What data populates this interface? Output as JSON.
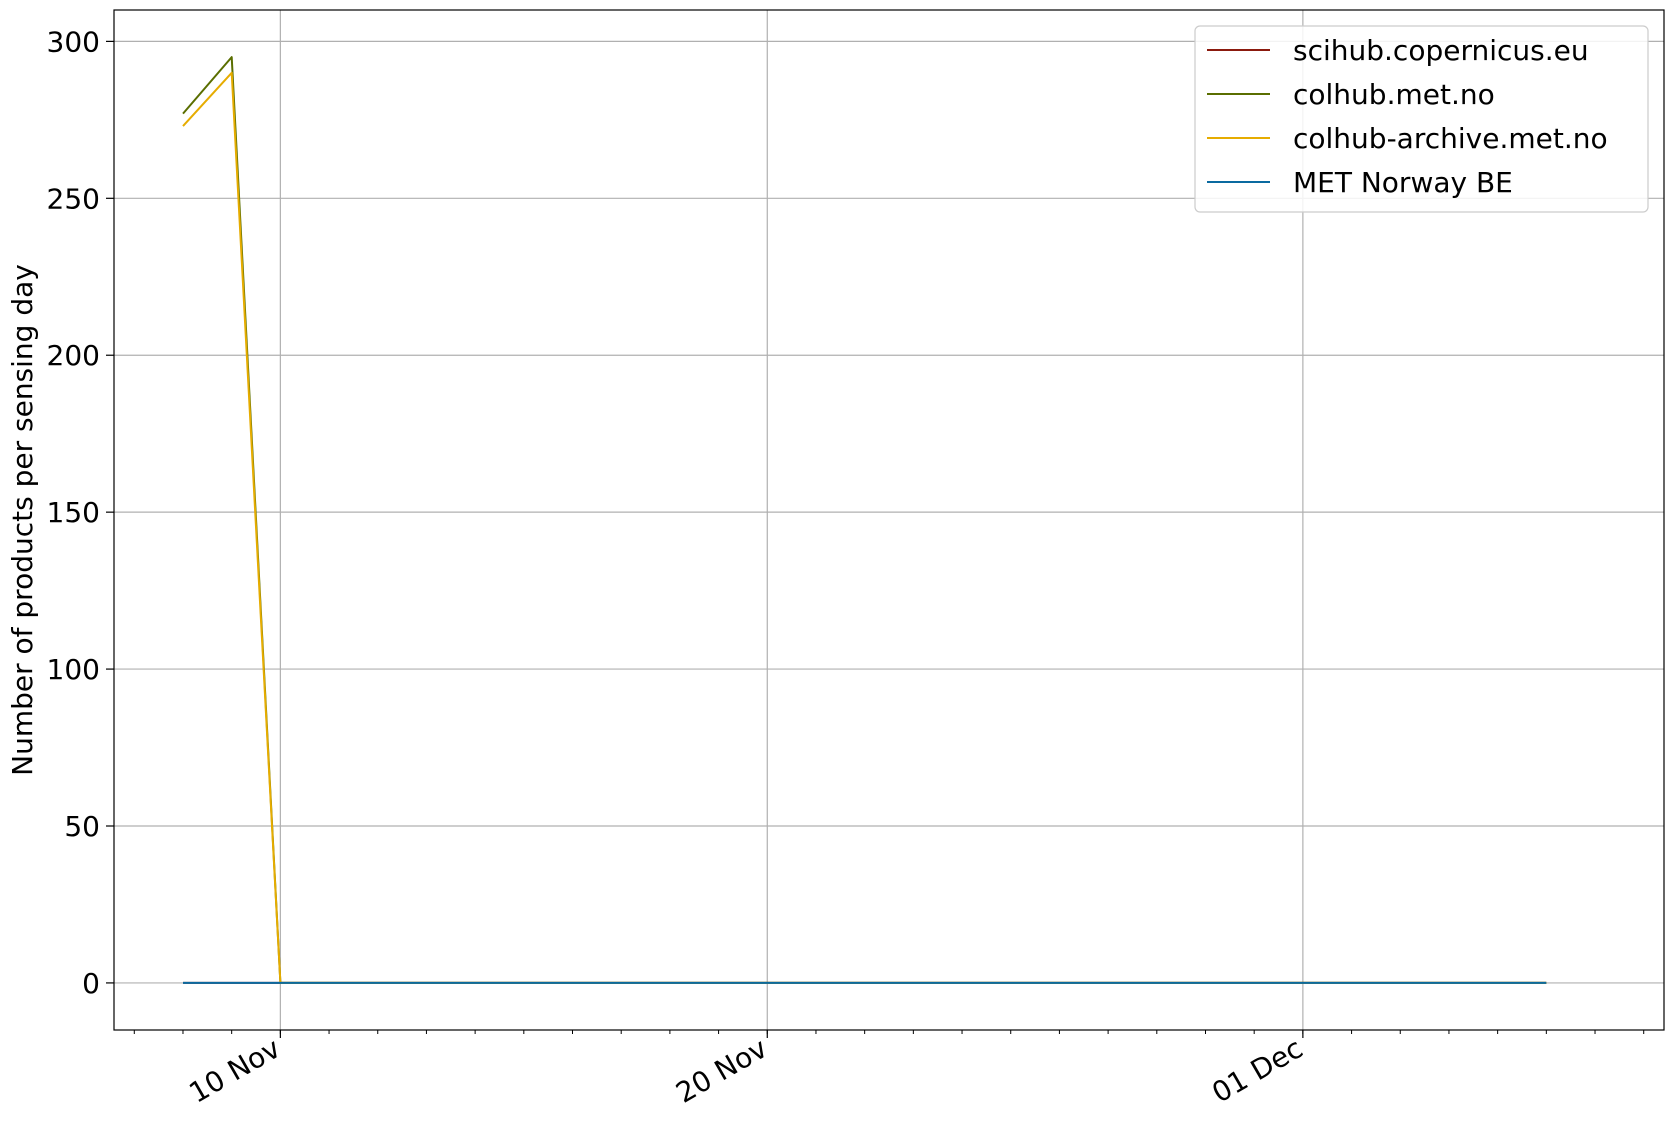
{
  "chart_data": {
    "type": "line",
    "title": "",
    "xlabel": "",
    "ylabel": "Number of products per sensing day",
    "xlim": [
      "2022-11-06T14:00",
      "2022-12-08T10:00"
    ],
    "ylim": [
      -15,
      310
    ],
    "yticks": [
      0,
      50,
      100,
      150,
      200,
      250,
      300
    ],
    "xticks": [
      {
        "date": "2022-11-10",
        "label": "10 Nov"
      },
      {
        "date": "2022-11-20",
        "label": "20 Nov"
      },
      {
        "date": "2022-12-01",
        "label": "01 Dec"
      }
    ],
    "grid": true,
    "legend_position": "top-right",
    "series": [
      {
        "name": "scihub.copernicus.eu",
        "color": "#8b1a0e",
        "points": [
          [
            "2022-11-08",
            0
          ],
          [
            "2022-11-09",
            0
          ],
          [
            "2022-11-10",
            0
          ],
          [
            "2022-12-06",
            0
          ]
        ]
      },
      {
        "name": "colhub.met.no",
        "color": "#5a6e00",
        "points": [
          [
            "2022-11-08",
            277
          ],
          [
            "2022-11-09",
            295
          ],
          [
            "2022-11-10",
            0
          ],
          [
            "2022-12-06",
            0
          ]
        ]
      },
      {
        "name": "colhub-archive.met.no",
        "color": "#e6ac00",
        "points": [
          [
            "2022-11-08",
            273
          ],
          [
            "2022-11-09",
            290
          ],
          [
            "2022-11-10",
            0
          ],
          [
            "2022-12-06",
            0
          ]
        ]
      },
      {
        "name": "MET Norway BE",
        "color": "#0a6aa0",
        "points": [
          [
            "2022-11-08",
            0
          ],
          [
            "2022-11-09",
            0
          ],
          [
            "2022-11-10",
            0
          ],
          [
            "2022-12-06",
            0
          ]
        ]
      }
    ]
  }
}
